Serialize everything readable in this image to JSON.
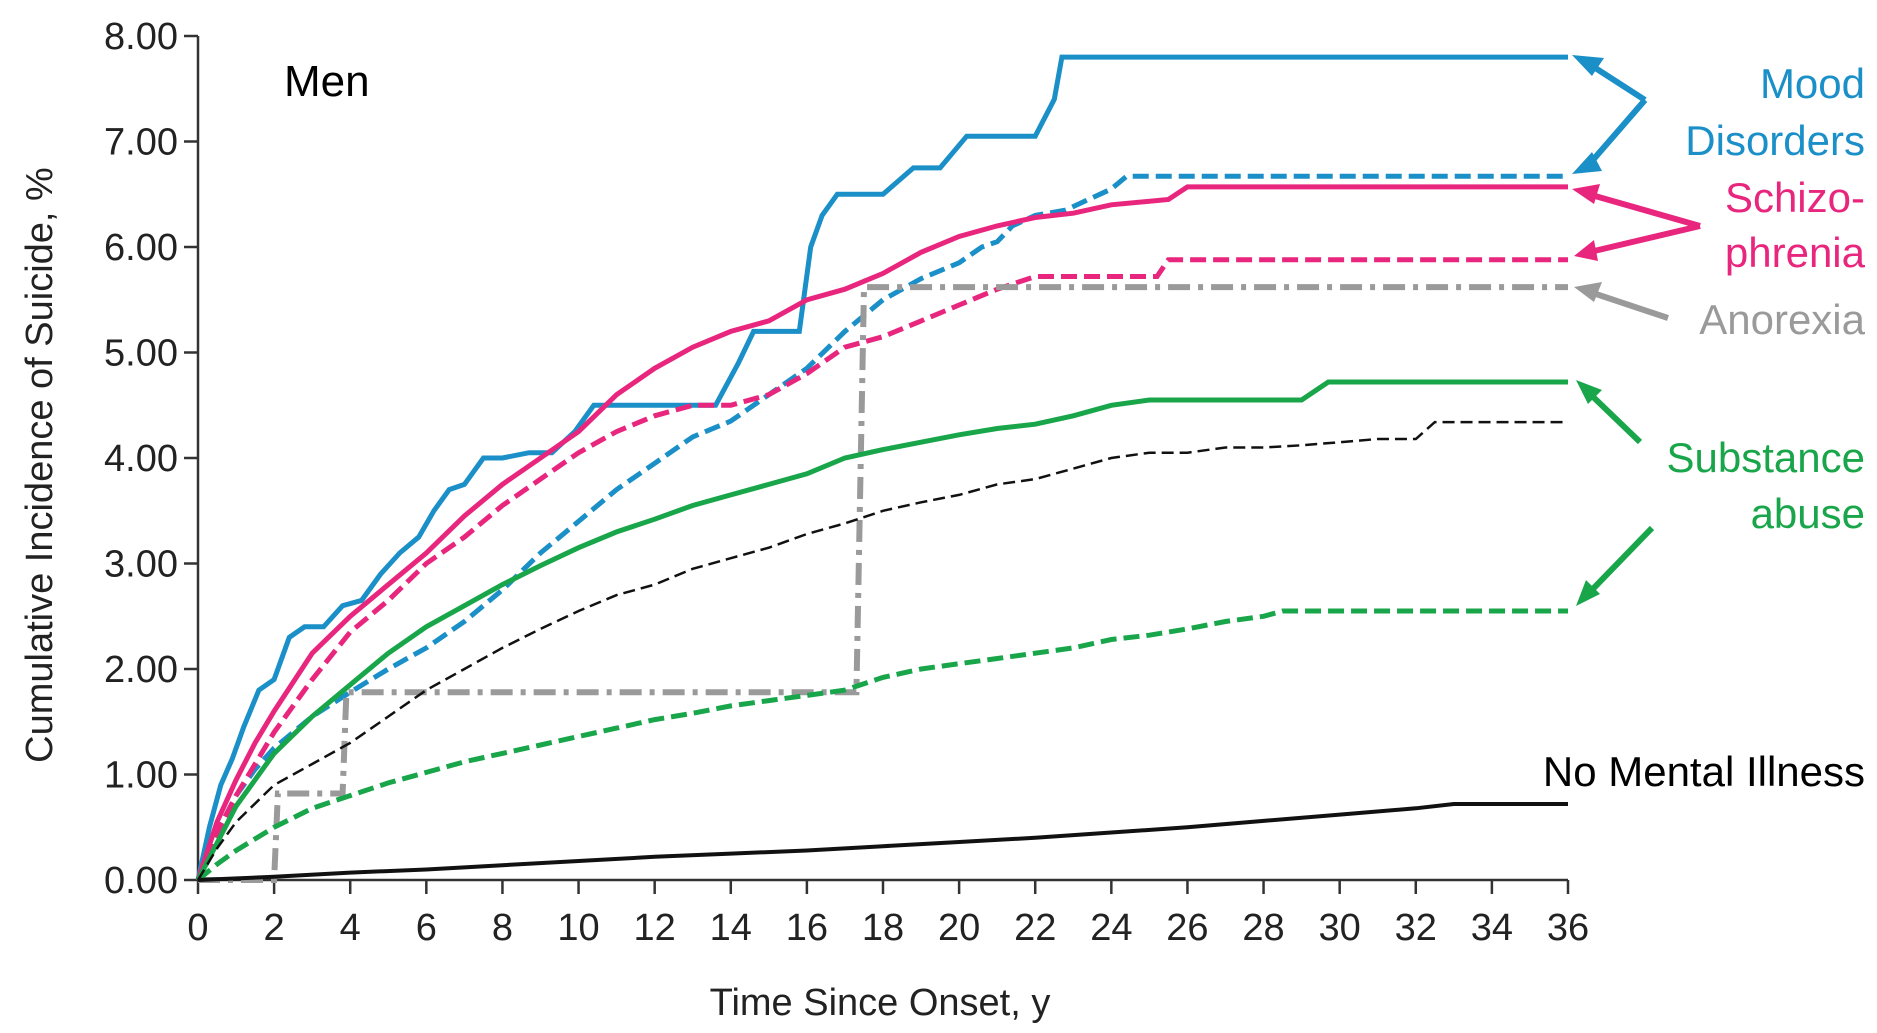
{
  "chart_data": {
    "type": "line",
    "title": "Men",
    "xlabel": "Time Since Onset, y",
    "ylabel": "Cumulative Incidence of Suicide, %",
    "xlim": [
      0,
      36
    ],
    "ylim": [
      0,
      8
    ],
    "x_ticks": [
      "0",
      "2",
      "4",
      "6",
      "8",
      "10",
      "12",
      "14",
      "16",
      "18",
      "20",
      "22",
      "24",
      "26",
      "28",
      "30",
      "32",
      "34",
      "36"
    ],
    "y_ticks": [
      "0.00",
      "1.00",
      "2.00",
      "3.00",
      "4.00",
      "5.00",
      "6.00",
      "7.00",
      "8.00"
    ],
    "grid": false,
    "colors": {
      "mood": "#1b8fc7",
      "schizophrenia": "#e8267e",
      "anorexia": "#9a9a9a",
      "substance": "#19a64a",
      "none": "#111111"
    },
    "annotations": {
      "mood_line1": "Mood",
      "mood_line2": "Disorders",
      "schizo_line1": "Schizo-",
      "schizo_line2": "phrenia",
      "anorexia": "Anorexia",
      "substance_line1": "Substance",
      "substance_line2": "abuse",
      "none": "No Mental Illness"
    },
    "series": [
      {
        "group": "mood",
        "style": "solid",
        "x": [
          0,
          0.3,
          0.6,
          0.9,
          1.2,
          1.6,
          2.0,
          2.4,
          2.8,
          3.3,
          3.8,
          4.3,
          4.8,
          5.3,
          5.8,
          6.2,
          6.6,
          7.0,
          7.5,
          8.0,
          8.7,
          9.3,
          9.9,
          10.4,
          10.9,
          11.5,
          12.2,
          12.9,
          13.6,
          14.2,
          14.6,
          15.2,
          15.8,
          16.1,
          16.4,
          16.8,
          17.4,
          18.0,
          18.8,
          19.5,
          20.2,
          20.8,
          21.4,
          22.0,
          22.5,
          22.7,
          23.2,
          24,
          26,
          28,
          30,
          32,
          34,
          36
        ],
        "y": [
          0,
          0.5,
          0.9,
          1.15,
          1.45,
          1.8,
          1.9,
          2.3,
          2.4,
          2.4,
          2.6,
          2.65,
          2.9,
          3.1,
          3.25,
          3.5,
          3.7,
          3.75,
          4.0,
          4.0,
          4.05,
          4.05,
          4.25,
          4.5,
          4.5,
          4.5,
          4.5,
          4.5,
          4.5,
          4.9,
          5.2,
          5.2,
          5.2,
          6.0,
          6.3,
          6.5,
          6.5,
          6.5,
          6.75,
          6.75,
          7.05,
          7.05,
          7.05,
          7.05,
          7.4,
          7.8,
          7.8,
          7.8,
          7.8,
          7.8,
          7.8,
          7.8,
          7.8,
          7.8
        ]
      },
      {
        "group": "mood",
        "style": "dashed",
        "x": [
          0,
          0.5,
          1,
          1.5,
          2,
          3,
          4,
          5,
          6,
          7,
          8,
          9,
          10,
          11,
          12,
          13,
          14,
          15,
          16,
          17,
          18,
          19,
          20,
          20.6,
          21.0,
          21.4,
          22,
          22.8,
          23.4,
          24,
          24.4,
          26,
          28,
          30,
          32,
          34,
          36
        ],
        "y": [
          0,
          0.45,
          0.8,
          1.05,
          1.25,
          1.55,
          1.78,
          2.0,
          2.2,
          2.45,
          2.75,
          3.1,
          3.4,
          3.7,
          3.95,
          4.2,
          4.35,
          4.6,
          4.85,
          5.2,
          5.5,
          5.7,
          5.85,
          6.0,
          6.05,
          6.2,
          6.3,
          6.35,
          6.45,
          6.55,
          6.67,
          6.67,
          6.67,
          6.67,
          6.67,
          6.67,
          6.67
        ]
      },
      {
        "group": "schizophrenia",
        "style": "solid",
        "x": [
          0,
          0.5,
          1,
          1.5,
          2,
          3,
          4,
          5,
          6,
          7,
          8,
          9,
          10,
          11,
          12,
          13,
          14,
          15,
          16,
          17,
          18,
          19,
          20,
          21,
          22,
          23,
          24,
          25.5,
          26,
          28,
          30,
          32,
          34,
          36
        ],
        "y": [
          0,
          0.55,
          0.95,
          1.3,
          1.6,
          2.15,
          2.5,
          2.8,
          3.1,
          3.45,
          3.75,
          4.0,
          4.25,
          4.6,
          4.85,
          5.05,
          5.2,
          5.3,
          5.5,
          5.6,
          5.75,
          5.95,
          6.1,
          6.2,
          6.28,
          6.32,
          6.4,
          6.45,
          6.57,
          6.57,
          6.57,
          6.57,
          6.57,
          6.57
        ]
      },
      {
        "group": "schizophrenia",
        "style": "dashed",
        "x": [
          0,
          0.5,
          1,
          1.5,
          2,
          3,
          4,
          5,
          6,
          7,
          8,
          9,
          10,
          11,
          12,
          13,
          14,
          15,
          16,
          17,
          18,
          19,
          20,
          21,
          22,
          23,
          24,
          25.2,
          25.5,
          26,
          28,
          30,
          32,
          34,
          36
        ],
        "y": [
          0,
          0.45,
          0.8,
          1.1,
          1.4,
          1.9,
          2.35,
          2.65,
          3.0,
          3.25,
          3.55,
          3.8,
          4.05,
          4.25,
          4.4,
          4.5,
          4.5,
          4.6,
          4.8,
          5.05,
          5.15,
          5.3,
          5.45,
          5.6,
          5.72,
          5.72,
          5.72,
          5.72,
          5.88,
          5.88,
          5.88,
          5.88,
          5.88,
          5.88,
          5.88
        ]
      },
      {
        "group": "anorexia",
        "style": "dashdot",
        "x": [
          0,
          1.2,
          2.0,
          2.1,
          3.8,
          3.9,
          17.3,
          17.5,
          36
        ],
        "y": [
          0,
          0,
          0,
          0.82,
          0.82,
          1.78,
          1.78,
          5.62,
          5.62
        ]
      },
      {
        "group": "substance",
        "style": "solid",
        "x": [
          0,
          0.5,
          1,
          1.5,
          2,
          3,
          4,
          5,
          6,
          7,
          8,
          9,
          10,
          11,
          12,
          13,
          14,
          15,
          16,
          17,
          18,
          19,
          20,
          21,
          22,
          23,
          24,
          25,
          26,
          27,
          28,
          29,
          29.7,
          30,
          32,
          34,
          36
        ],
        "y": [
          0,
          0.35,
          0.7,
          0.95,
          1.2,
          1.55,
          1.85,
          2.15,
          2.4,
          2.6,
          2.8,
          2.98,
          3.15,
          3.3,
          3.42,
          3.55,
          3.65,
          3.75,
          3.85,
          4.0,
          4.08,
          4.15,
          4.22,
          4.28,
          4.32,
          4.4,
          4.5,
          4.55,
          4.55,
          4.55,
          4.55,
          4.55,
          4.72,
          4.72,
          4.72,
          4.72,
          4.72
        ]
      },
      {
        "group": "substance",
        "style": "dashed",
        "x": [
          0,
          0.5,
          1,
          2,
          3,
          4,
          5,
          6,
          7,
          8,
          9,
          10,
          11,
          12,
          13,
          14,
          15,
          16,
          17,
          18,
          19,
          20,
          21,
          22,
          23,
          24,
          25,
          26,
          27,
          28,
          28.5,
          30,
          32,
          34,
          36
        ],
        "y": [
          0,
          0.15,
          0.28,
          0.5,
          0.68,
          0.8,
          0.92,
          1.02,
          1.12,
          1.2,
          1.28,
          1.36,
          1.44,
          1.52,
          1.58,
          1.65,
          1.7,
          1.75,
          1.8,
          1.92,
          2.0,
          2.05,
          2.1,
          2.15,
          2.2,
          2.28,
          2.32,
          2.38,
          2.45,
          2.5,
          2.55,
          2.55,
          2.55,
          2.55,
          2.55
        ]
      },
      {
        "group": "none",
        "style": "dashed",
        "x": [
          0,
          0.5,
          1,
          2,
          3,
          4,
          5,
          6,
          7,
          8,
          9,
          10,
          11,
          12,
          13,
          14,
          15,
          16,
          17,
          18,
          19,
          20,
          21,
          22,
          23,
          24,
          25,
          26,
          27,
          28,
          29,
          30,
          31,
          32,
          32.5,
          34,
          36
        ],
        "y": [
          0,
          0.3,
          0.55,
          0.9,
          1.1,
          1.3,
          1.55,
          1.8,
          2.0,
          2.2,
          2.38,
          2.55,
          2.7,
          2.8,
          2.95,
          3.05,
          3.15,
          3.28,
          3.38,
          3.5,
          3.58,
          3.65,
          3.75,
          3.8,
          3.9,
          4.0,
          4.05,
          4.05,
          4.1,
          4.1,
          4.12,
          4.15,
          4.18,
          4.18,
          4.34,
          4.34,
          4.34
        ]
      },
      {
        "group": "none",
        "style": "solid",
        "x": [
          0,
          2,
          4,
          6,
          8,
          10,
          12,
          14,
          16,
          18,
          20,
          22,
          24,
          26,
          28,
          30,
          32,
          33,
          34,
          36
        ],
        "y": [
          0,
          0.03,
          0.07,
          0.1,
          0.14,
          0.18,
          0.22,
          0.25,
          0.28,
          0.32,
          0.36,
          0.4,
          0.45,
          0.5,
          0.56,
          0.62,
          0.68,
          0.72,
          0.72,
          0.72
        ]
      }
    ]
  }
}
